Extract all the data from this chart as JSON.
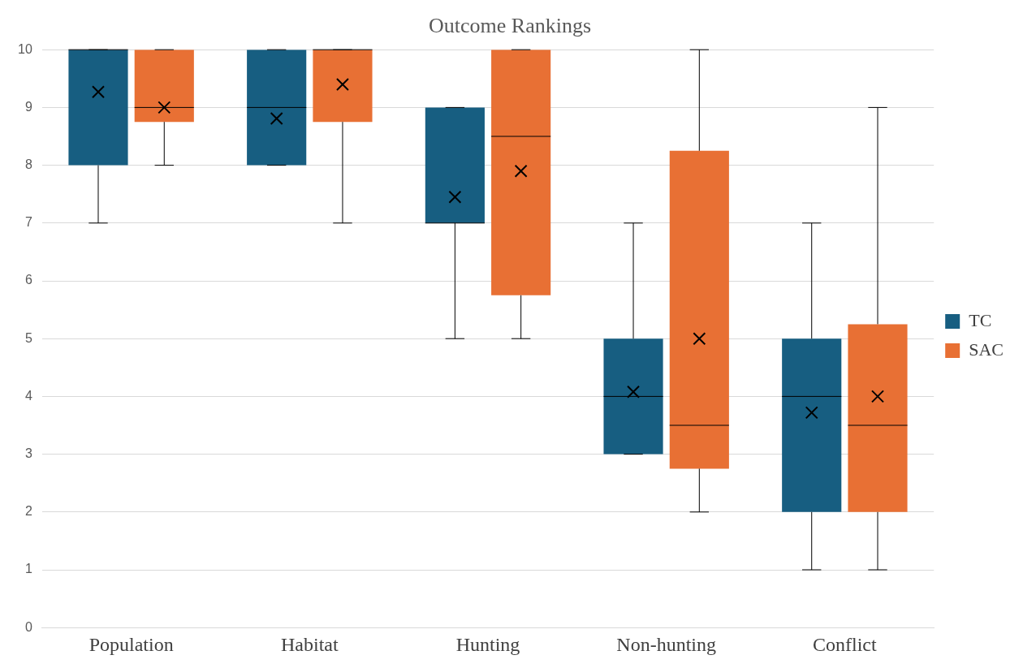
{
  "chart_data": {
    "type": "box",
    "title": "Outcome Rankings",
    "categories": [
      "Population",
      "Habitat",
      "Hunting",
      "Non-hunting",
      "Conflict"
    ],
    "ylim": [
      0,
      10
    ],
    "yticks": [
      0,
      1,
      2,
      3,
      4,
      5,
      6,
      7,
      8,
      9,
      10
    ],
    "grid": "y",
    "legend": "right",
    "series": [
      {
        "name": "TC",
        "color": "#175e81",
        "boxes": [
          {
            "low": 7,
            "q1": 8,
            "median": 10,
            "q3": 10,
            "high": 10,
            "mean": 9.27
          },
          {
            "low": 8,
            "q1": 8,
            "median": 9,
            "q3": 10,
            "high": 10,
            "mean": 8.81
          },
          {
            "low": 5,
            "q1": 7,
            "median": 7,
            "q3": 9,
            "high": 9,
            "mean": 7.45
          },
          {
            "low": 3,
            "q1": 3,
            "median": 4,
            "q3": 5,
            "high": 7,
            "mean": 4.08
          },
          {
            "low": 1,
            "q1": 2,
            "median": 4,
            "q3": 5,
            "high": 7,
            "mean": 3.72
          }
        ]
      },
      {
        "name": "SAC",
        "color": "#e87034",
        "boxes": [
          {
            "low": 8,
            "q1": 8.75,
            "median": 9,
            "q3": 10,
            "high": 10,
            "mean": 9.0
          },
          {
            "low": 7,
            "q1": 8.75,
            "median": 10,
            "q3": 10,
            "high": 10,
            "mean": 9.4
          },
          {
            "low": 5,
            "q1": 5.75,
            "median": 8.5,
            "q3": 10,
            "high": 10,
            "mean": 7.9
          },
          {
            "low": 2,
            "q1": 2.75,
            "median": 3.5,
            "q3": 8.25,
            "high": 10,
            "mean": 5.0
          },
          {
            "low": 1,
            "q1": 2,
            "median": 3.5,
            "q3": 5.25,
            "high": 9,
            "mean": 4.0
          }
        ]
      }
    ]
  }
}
